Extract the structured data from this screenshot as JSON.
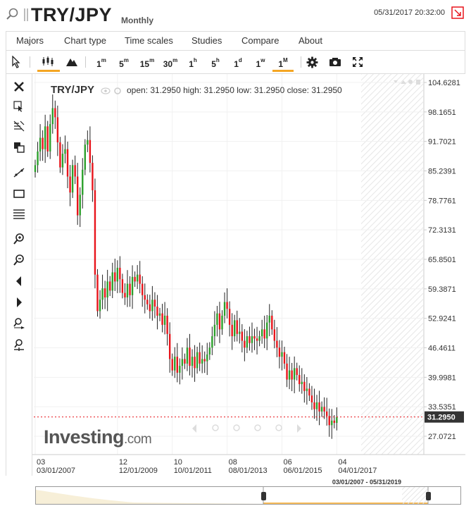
{
  "header": {
    "symbol": "TRY/JPY",
    "period": "Monthly",
    "datetime": "05/31/2017 20:32:00"
  },
  "menu": {
    "items": [
      "Majors",
      "Chart type",
      "Time scales",
      "Studies",
      "Compare",
      "About"
    ]
  },
  "toolbar": {
    "timeframes": [
      {
        "n": "1",
        "u": "m"
      },
      {
        "n": "5",
        "u": "m"
      },
      {
        "n": "15",
        "u": "m"
      },
      {
        "n": "30",
        "u": "m"
      },
      {
        "n": "1",
        "u": "h"
      },
      {
        "n": "5",
        "u": "h"
      },
      {
        "n": "1",
        "u": "d"
      },
      {
        "n": "1",
        "u": "w"
      },
      {
        "n": "1",
        "u": "M"
      }
    ],
    "active_timeframe": "1M",
    "active_chart_type": "candlestick"
  },
  "ohlc": {
    "symbol": "TRY/JPY",
    "open_label": "open:",
    "open": "31.2950",
    "high_label": "high:",
    "high": "31.2950",
    "low_label": "low:",
    "low": "31.2950",
    "close_label": "close:",
    "close": "31.2950"
  },
  "logo": {
    "main": "Investing",
    "suffix": ".com"
  },
  "navigator": {
    "range": "03/01/2007 - 05/31/2019"
  },
  "colors": {
    "up": "#2ca02c",
    "down": "#e8141b",
    "accent": "#f5a623",
    "last_price_line": "#e8141b"
  },
  "chart_data": {
    "type": "candlestick",
    "title": "TRY/JPY",
    "last_price": "31.2950",
    "y_ticks": [
      "104.6281",
      "98.1651",
      "91.7021",
      "85.2391",
      "78.7761",
      "72.3131",
      "65.8501",
      "59.3871",
      "52.9241",
      "46.4611",
      "39.9981",
      "33.5351",
      "27.0721"
    ],
    "ylim": [
      22,
      106
    ],
    "x_ticks": [
      {
        "top": "03",
        "bottom": "03/01/2007",
        "i": 0
      },
      {
        "top": "12",
        "bottom": "12/01/2009",
        "i": 33
      },
      {
        "top": "10",
        "bottom": "10/01/2011",
        "i": 55
      },
      {
        "top": "08",
        "bottom": "08/01/2013",
        "i": 77
      },
      {
        "top": "06",
        "bottom": "06/01/2015",
        "i": 99
      },
      {
        "top": "04",
        "bottom": "04/01/2017",
        "i": 121
      }
    ],
    "start": "03/01/2007",
    "closes": [
      86.5,
      89.5,
      92.5,
      90.0,
      95.0,
      89.5,
      95.5,
      99.0,
      97.0,
      91.5,
      86.0,
      89.0,
      90.0,
      84.0,
      80.5,
      86.5,
      84.0,
      75.5,
      80.0,
      85.5,
      91.0,
      92.0,
      87.0,
      81.0,
      62.5,
      54.5,
      57.0,
      59.5,
      57.5,
      61.0,
      59.0,
      63.0,
      61.0,
      64.0,
      61.5,
      58.5,
      57.5,
      60.5,
      58.0,
      62.0,
      61.0,
      62.5,
      60.5,
      58.0,
      57.0,
      56.0,
      54.5,
      57.0,
      55.5,
      53.5,
      54.0,
      51.5,
      53.5,
      49.5,
      44.0,
      41.5,
      44.5,
      41.0,
      42.5,
      44.0,
      43.0,
      46.5,
      42.5,
      44.5,
      42.0,
      45.5,
      43.0,
      44.0,
      43.5,
      45.0,
      46.5,
      49.0,
      51.5,
      54.0,
      50.5,
      53.5,
      56.5,
      55.0,
      51.5,
      49.0,
      52.5,
      49.5,
      50.0,
      48.0,
      46.5,
      49.0,
      47.5,
      49.0,
      48.5,
      48.0,
      49.0,
      50.5,
      48.5,
      52.0,
      53.5,
      50.5,
      48.0,
      46.5,
      44.5,
      45.5,
      43.0,
      39.5,
      41.5,
      39.5,
      42.0,
      40.5,
      38.5,
      39.0,
      37.0,
      37.5,
      36.0,
      34.5,
      33.0,
      34.5,
      32.5,
      33.5,
      32.5,
      31.5,
      29.5,
      30.5,
      30.0,
      31.3
    ]
  }
}
